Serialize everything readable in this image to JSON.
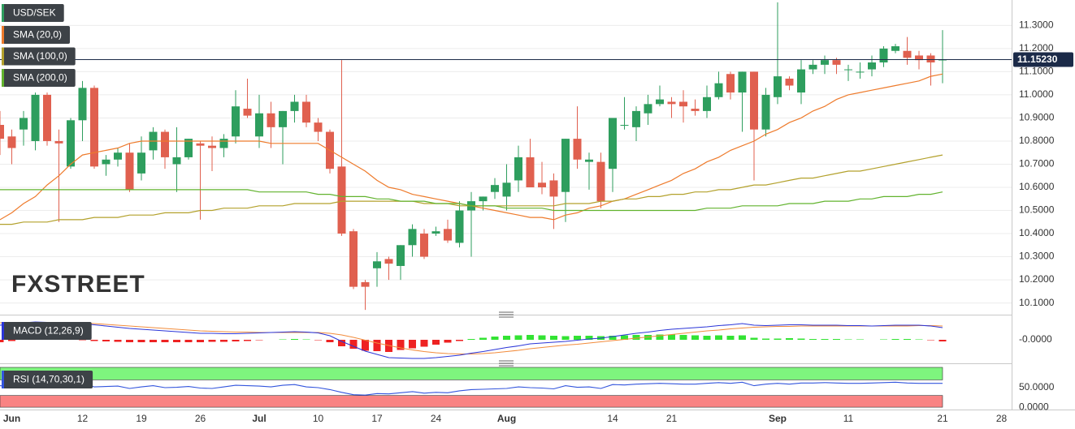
{
  "chart_data": [
    {
      "type": "candlestick",
      "categories": [
        null,
        "Jun",
        null,
        null,
        null,
        null,
        null,
        "12",
        null,
        null,
        null,
        null,
        "19",
        null,
        null,
        null,
        null,
        "26",
        null,
        null,
        null,
        null,
        "Jul",
        null,
        null,
        null,
        null,
        "10",
        null,
        null,
        null,
        null,
        "17",
        null,
        null,
        null,
        null,
        "24",
        null,
        null,
        null,
        null,
        null,
        "Aug",
        null,
        null,
        null,
        null,
        null,
        null,
        null,
        null,
        "14",
        null,
        null,
        null,
        null,
        "21",
        null,
        null,
        null,
        null,
        null,
        null,
        null,
        null,
        "Sep",
        null,
        null,
        null,
        null,
        null,
        "11",
        null,
        null,
        null,
        null,
        null,
        null,
        null,
        "21",
        null,
        null,
        null,
        null,
        "28"
      ],
      "ylim": [
        10.06,
        11.41
      ],
      "yticks": [
        {
          "value": 11.3,
          "label": "11.3000"
        },
        {
          "value": 11.2,
          "label": "11.2000"
        },
        {
          "value": 11.1,
          "label": "11.1000"
        },
        {
          "value": 11.0,
          "label": "11.0000"
        },
        {
          "value": 10.9,
          "label": "10.9000"
        },
        {
          "value": 10.8,
          "label": "10.8000"
        },
        {
          "value": 10.7,
          "label": "10.7000"
        },
        {
          "value": 10.6,
          "label": "10.6000"
        },
        {
          "value": 10.5,
          "label": "10.5000"
        },
        {
          "value": 10.4,
          "label": "10.4000"
        },
        {
          "value": 10.3,
          "label": "10.3000"
        },
        {
          "value": 10.2,
          "label": "10.2000"
        },
        {
          "value": 10.1,
          "label": "10.1000"
        }
      ],
      "grid": true,
      "watermark": "FXSTREET",
      "last_price": {
        "value": 11.1523,
        "label": "11.15230"
      },
      "last_price_color": "#1b2a48",
      "ohlc": {
        "name": "USD/SEK",
        "up_color": "#2e9e5e",
        "down_color": "#e0604f",
        "open": [
          10.87,
          10.82,
          10.85,
          10.8,
          11.0,
          10.8,
          10.69,
          10.89,
          11.03,
          10.7,
          10.72,
          10.75,
          10.66,
          10.76,
          10.84,
          10.7,
          10.73,
          10.79,
          10.78,
          10.77,
          10.82,
          10.94,
          10.82,
          10.92,
          10.86,
          10.93,
          10.97,
          10.88,
          10.84,
          10.69,
          10.41,
          10.19,
          10.25,
          10.29,
          10.26,
          10.35,
          10.4,
          10.4,
          10.42,
          10.36,
          10.5,
          10.54,
          10.58,
          10.56,
          10.63,
          10.73,
          10.62,
          10.63,
          10.58,
          10.81,
          10.71,
          10.71,
          10.68,
          10.87,
          10.86,
          10.92,
          10.96,
          10.97,
          10.97,
          10.94,
          10.93,
          10.99,
          11.09,
          11.01,
          11.1,
          10.85,
          10.99,
          11.07,
          11.01,
          11.11,
          11.13,
          11.15,
          11.11,
          11.1,
          11.11,
          11.14,
          11.19,
          11.19,
          11.17,
          11.17,
          11.15,
          null,
          null,
          null,
          null,
          null
        ],
        "high": [
          10.93,
          10.85,
          10.93,
          11.01,
          11.01,
          10.85,
          10.9,
          11.06,
          11.04,
          10.74,
          10.77,
          10.79,
          10.82,
          10.86,
          10.85,
          10.86,
          10.81,
          10.8,
          10.82,
          10.83,
          11.02,
          11.07,
          11.0,
          10.97,
          10.93,
          11.0,
          11.0,
          10.9,
          10.85,
          11.15,
          10.42,
          10.2,
          10.32,
          10.3,
          10.35,
          10.44,
          10.42,
          10.43,
          10.46,
          10.54,
          10.58,
          10.56,
          10.64,
          10.7,
          10.78,
          10.81,
          10.71,
          10.66,
          10.81,
          10.95,
          10.75,
          10.75,
          10.9,
          10.99,
          10.95,
          11.0,
          11.04,
          10.99,
          11.02,
          10.98,
          11.04,
          11.1,
          11.1,
          11.1,
          11.1,
          11.03,
          11.4,
          11.08,
          11.15,
          11.15,
          11.17,
          11.16,
          11.13,
          11.14,
          11.17,
          11.21,
          11.22,
          11.25,
          11.19,
          11.18,
          11.28,
          null,
          null,
          null,
          null,
          null
        ],
        "low": [
          10.74,
          10.7,
          10.78,
          10.76,
          10.78,
          10.45,
          10.68,
          10.8,
          10.68,
          10.65,
          10.69,
          10.58,
          10.63,
          10.72,
          10.68,
          10.58,
          10.72,
          10.46,
          10.67,
          10.73,
          10.79,
          10.9,
          10.77,
          10.77,
          10.7,
          10.88,
          10.86,
          10.8,
          10.66,
          10.39,
          10.16,
          10.07,
          10.17,
          10.2,
          10.2,
          10.3,
          10.29,
          10.39,
          10.36,
          10.34,
          10.3,
          10.5,
          10.55,
          10.5,
          10.58,
          10.6,
          10.57,
          10.42,
          10.45,
          10.68,
          10.59,
          10.51,
          10.58,
          10.85,
          10.8,
          10.87,
          10.95,
          10.9,
          10.88,
          10.91,
          10.9,
          10.98,
          10.98,
          10.84,
          10.63,
          10.82,
          10.96,
          11.02,
          10.96,
          11.09,
          11.09,
          11.09,
          11.06,
          11.07,
          11.08,
          11.12,
          11.18,
          11.13,
          11.11,
          11.04,
          11.05,
          null,
          null,
          null,
          null,
          null
        ],
        "close": [
          10.81,
          10.77,
          10.9,
          11.0,
          10.8,
          10.79,
          10.89,
          11.03,
          10.69,
          10.72,
          10.75,
          10.59,
          10.75,
          10.84,
          10.73,
          10.73,
          10.81,
          10.78,
          10.77,
          10.81,
          10.95,
          10.91,
          10.92,
          10.86,
          10.93,
          10.97,
          10.88,
          10.84,
          10.68,
          10.4,
          10.17,
          10.17,
          10.28,
          10.27,
          10.35,
          10.42,
          10.3,
          10.41,
          10.37,
          10.5,
          10.54,
          10.56,
          10.61,
          10.62,
          10.73,
          10.6,
          10.6,
          10.56,
          10.81,
          10.72,
          10.72,
          10.54,
          10.9,
          10.87,
          10.93,
          10.96,
          10.98,
          10.96,
          10.95,
          10.93,
          10.99,
          11.05,
          11.01,
          11.1,
          10.85,
          11.0,
          11.08,
          11.04,
          11.11,
          11.13,
          11.15,
          11.13,
          11.11,
          11.1,
          11.14,
          11.2,
          11.21,
          11.16,
          11.15,
          11.14,
          11.1523,
          null,
          null,
          null,
          null,
          null
        ]
      },
      "series": [
        {
          "name": "SMA (20,0)",
          "color": "#ee7b2c",
          "values": [
            10.46,
            10.49,
            10.53,
            10.56,
            10.61,
            10.65,
            10.7,
            10.74,
            10.75,
            10.76,
            10.77,
            10.79,
            10.8,
            10.8,
            10.8,
            10.8,
            10.8,
            10.8,
            10.8,
            10.8,
            10.8,
            10.8,
            10.8,
            10.79,
            10.79,
            10.79,
            10.79,
            10.79,
            10.76,
            10.73,
            10.7,
            10.67,
            10.63,
            10.6,
            10.59,
            10.57,
            10.56,
            10.55,
            10.54,
            10.53,
            10.52,
            10.51,
            10.5,
            10.49,
            10.48,
            10.47,
            10.47,
            10.46,
            10.48,
            10.49,
            10.51,
            10.52,
            10.54,
            10.55,
            10.57,
            10.59,
            10.61,
            10.63,
            10.66,
            10.68,
            10.71,
            10.73,
            10.76,
            10.78,
            10.8,
            10.83,
            10.85,
            10.88,
            10.9,
            10.93,
            10.95,
            10.98,
            11.0,
            11.01,
            11.02,
            11.03,
            11.04,
            11.05,
            11.06,
            11.08,
            11.09,
            null,
            null,
            null,
            null,
            null
          ]
        },
        {
          "name": "SMA (100,0)",
          "color": "#b3a12c",
          "values": [
            10.44,
            10.44,
            10.45,
            10.45,
            10.45,
            10.46,
            10.46,
            10.46,
            10.47,
            10.47,
            10.47,
            10.48,
            10.48,
            10.48,
            10.49,
            10.49,
            10.49,
            10.5,
            10.5,
            10.51,
            10.51,
            10.51,
            10.52,
            10.52,
            10.52,
            10.53,
            10.53,
            10.53,
            10.53,
            10.54,
            10.54,
            10.54,
            10.54,
            10.54,
            10.54,
            10.54,
            10.53,
            10.53,
            10.53,
            10.52,
            10.52,
            10.52,
            10.52,
            10.52,
            10.52,
            10.52,
            10.52,
            10.52,
            10.53,
            10.53,
            10.53,
            10.54,
            10.54,
            10.55,
            10.55,
            10.56,
            10.56,
            10.57,
            10.57,
            10.58,
            10.58,
            10.59,
            10.59,
            10.6,
            10.61,
            10.61,
            10.62,
            10.63,
            10.64,
            10.64,
            10.65,
            10.66,
            10.67,
            10.67,
            10.68,
            10.69,
            10.7,
            10.71,
            10.72,
            10.73,
            10.74,
            null,
            null,
            null,
            null,
            null
          ]
        },
        {
          "name": "SMA (200,0)",
          "color": "#62b32e",
          "values": [
            10.59,
            10.59,
            10.59,
            10.59,
            10.59,
            10.59,
            10.59,
            10.59,
            10.59,
            10.59,
            10.59,
            10.59,
            10.59,
            10.59,
            10.59,
            10.59,
            10.59,
            10.59,
            10.59,
            10.59,
            10.59,
            10.59,
            10.58,
            10.58,
            10.58,
            10.58,
            10.58,
            10.57,
            10.57,
            10.56,
            10.56,
            10.56,
            10.55,
            10.55,
            10.54,
            10.54,
            10.54,
            10.53,
            10.53,
            10.53,
            10.52,
            10.52,
            10.52,
            10.51,
            10.51,
            10.51,
            10.51,
            10.5,
            10.5,
            10.5,
            10.5,
            10.5,
            10.5,
            10.5,
            10.5,
            10.5,
            10.5,
            10.5,
            10.5,
            10.5,
            10.51,
            10.51,
            10.51,
            10.52,
            10.52,
            10.52,
            10.52,
            10.53,
            10.53,
            10.53,
            10.54,
            10.54,
            10.54,
            10.55,
            10.55,
            10.56,
            10.56,
            10.56,
            10.57,
            10.57,
            10.58,
            null,
            null,
            null,
            null,
            null
          ]
        }
      ]
    },
    {
      "type": "macd",
      "title": "MACD (12,26,9)",
      "ylim": [
        -0.048,
        0.052
      ],
      "yticks": [
        {
          "value": 0,
          "label": "-0.0000"
        }
      ],
      "macd": {
        "color": "#2b35d8",
        "values": [
          0.036,
          0.039,
          0.042,
          0.044,
          0.043,
          0.042,
          0.041,
          0.04,
          0.037,
          0.034,
          0.031,
          0.028,
          0.026,
          0.024,
          0.022,
          0.02,
          0.018,
          0.016,
          0.016,
          0.015,
          0.015,
          0.016,
          0.017,
          0.018,
          0.019,
          0.02,
          0.019,
          0.017,
          0.01,
          -0.004,
          -0.016,
          -0.028,
          -0.036,
          -0.044,
          -0.045,
          -0.046,
          -0.046,
          -0.044,
          -0.041,
          -0.038,
          -0.033,
          -0.029,
          -0.024,
          -0.019,
          -0.015,
          -0.01,
          -0.008,
          -0.006,
          -0.004,
          -0.001,
          0.002,
          0.004,
          0.008,
          0.012,
          0.016,
          0.019,
          0.023,
          0.026,
          0.028,
          0.03,
          0.032,
          0.035,
          0.037,
          0.04,
          0.036,
          0.035,
          0.036,
          0.037,
          0.037,
          0.036,
          0.036,
          0.036,
          0.035,
          0.035,
          0.034,
          0.035,
          0.036,
          0.036,
          0.036,
          0.034,
          0.03
        ]
      },
      "signal": {
        "color": "#f28c3c",
        "values": [
          0.042,
          0.042,
          0.042,
          0.042,
          0.042,
          0.042,
          0.041,
          0.041,
          0.04,
          0.038,
          0.036,
          0.034,
          0.032,
          0.03,
          0.028,
          0.026,
          0.024,
          0.022,
          0.021,
          0.02,
          0.019,
          0.019,
          0.018,
          0.018,
          0.018,
          0.018,
          0.018,
          0.018,
          0.016,
          0.012,
          0.006,
          -0.001,
          -0.008,
          -0.014,
          -0.02,
          -0.025,
          -0.029,
          -0.032,
          -0.034,
          -0.035,
          -0.035,
          -0.034,
          -0.032,
          -0.029,
          -0.026,
          -0.022,
          -0.019,
          -0.016,
          -0.013,
          -0.011,
          -0.008,
          -0.005,
          -0.002,
          0.001,
          0.004,
          0.007,
          0.01,
          0.013,
          0.016,
          0.019,
          0.022,
          0.024,
          0.027,
          0.029,
          0.031,
          0.032,
          0.033,
          0.033,
          0.034,
          0.034,
          0.034,
          0.034,
          0.034,
          0.034,
          0.034,
          0.034,
          0.034,
          0.034,
          0.035,
          0.035,
          0.034
        ]
      },
      "histogram": {
        "up_color": "#33e333",
        "down_color": "#ee2222",
        "values": [
          -0.006,
          -0.003,
          0.0,
          0.002,
          0.001,
          0.0,
          0.0,
          -0.001,
          -0.003,
          -0.004,
          -0.005,
          -0.006,
          -0.006,
          -0.006,
          -0.006,
          -0.006,
          -0.006,
          -0.006,
          -0.005,
          -0.005,
          -0.004,
          -0.003,
          -0.001,
          0.0,
          0.001,
          0.002,
          0.001,
          -0.001,
          -0.006,
          -0.016,
          -0.022,
          -0.027,
          -0.028,
          -0.03,
          -0.025,
          -0.021,
          -0.017,
          -0.012,
          -0.007,
          -0.003,
          0.002,
          0.005,
          0.008,
          0.01,
          0.011,
          0.012,
          0.011,
          0.01,
          0.009,
          0.01,
          0.01,
          0.009,
          0.01,
          0.011,
          0.012,
          0.012,
          0.013,
          0.013,
          0.012,
          0.011,
          0.01,
          0.011,
          0.01,
          0.011,
          0.005,
          0.003,
          0.003,
          0.004,
          0.003,
          0.002,
          0.002,
          0.002,
          0.001,
          0.001,
          0.0,
          0.001,
          0.002,
          0.002,
          0.001,
          -0.001,
          -0.004
        ]
      }
    },
    {
      "type": "rsi",
      "title": "RSI (14,70,30,1)",
      "ylim": [
        -6,
        102
      ],
      "yticks": [
        {
          "value": 50,
          "label": "50.0000"
        },
        {
          "value": 0,
          "label": "0.0000"
        }
      ],
      "overbought_band": [
        70,
        102
      ],
      "overbought_color": "#7ef57e",
      "oversold_band": [
        0,
        30
      ],
      "oversold_color": "#f98383",
      "color": "#3355dd",
      "values": [
        55,
        52,
        56,
        60,
        55,
        54,
        57,
        62,
        52,
        53,
        54,
        48,
        52,
        55,
        50,
        51,
        53,
        49,
        48,
        52,
        56,
        55,
        54,
        52,
        56,
        58,
        52,
        50,
        45,
        38,
        32,
        31,
        35,
        34,
        37,
        40,
        36,
        38,
        37,
        42,
        45,
        46,
        47,
        48,
        52,
        50,
        49,
        47,
        55,
        51,
        52,
        48,
        58,
        57,
        59,
        60,
        61,
        60,
        59,
        59,
        61,
        63,
        61,
        64,
        55,
        59,
        61,
        59,
        62,
        62,
        63,
        62,
        61,
        61,
        62,
        63,
        64,
        62,
        61,
        61,
        61
      ]
    }
  ]
}
